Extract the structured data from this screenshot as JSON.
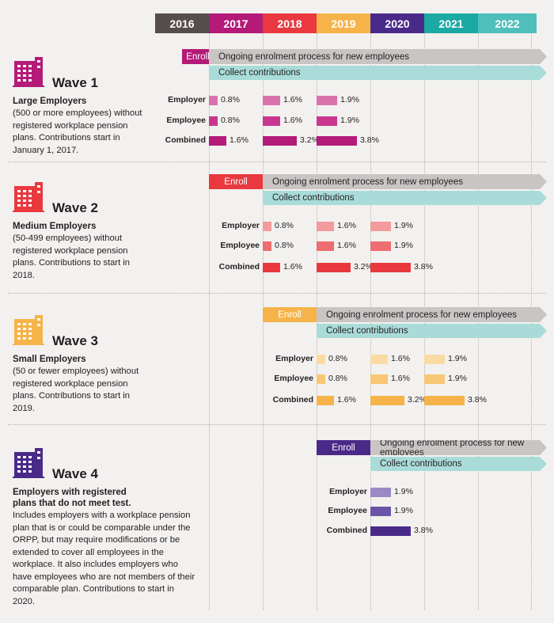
{
  "years": [
    {
      "label": "2016",
      "color": "#544d4b"
    },
    {
      "label": "2017",
      "color": "#b41a78"
    },
    {
      "label": "2018",
      "color": "#e9393f"
    },
    {
      "label": "2019",
      "color": "#f6b349"
    },
    {
      "label": "2020",
      "color": "#4a2a89"
    },
    {
      "label": "2021",
      "color": "#1aa9a3"
    },
    {
      "label": "2022",
      "color": "#4fbfbc"
    }
  ],
  "common": {
    "enroll": "Enroll",
    "ongoing": "Ongoing enrolment process for new employees",
    "collect": "Collect contributions",
    "employer": "Employer",
    "employee": "Employee",
    "combined": "Combined"
  },
  "waves": [
    {
      "title": "Wave 1",
      "color": "#b41a78",
      "subtitle": "Large Employers",
      "description": "(500 or more employees) without registered workplace pension plans. Contributions start in January 1, 2017.",
      "start_year": "2017",
      "employer": {
        "colors": [
          "#da72ad",
          "#da72ad",
          "#da72ad"
        ],
        "values": [
          "0.8%",
          "1.6%",
          "1.9%"
        ]
      },
      "employee": {
        "colors": [
          "#c9378f",
          "#c9378f",
          "#c9378f"
        ],
        "values": [
          "0.8%",
          "1.6%",
          "1.9%"
        ]
      },
      "combined": {
        "colors": [
          "#b41a78",
          "#b41a78",
          "#b41a78"
        ],
        "values": [
          "1.6%",
          "3.2%",
          "3.8%"
        ]
      }
    },
    {
      "title": "Wave 2",
      "color": "#e9393f",
      "subtitle": "Medium Employers",
      "description": "(50-499 employees) without registered workplace pension plans. Contributions to start in 2018.",
      "start_year": "2018",
      "employer": {
        "colors": [
          "#f29a9c",
          "#f29a9c",
          "#f29a9c"
        ],
        "values": [
          "0.8%",
          "1.6%",
          "1.9%"
        ]
      },
      "employee": {
        "colors": [
          "#ee6d70",
          "#ee6d70",
          "#ee6d70"
        ],
        "values": [
          "0.8%",
          "1.6%",
          "1.9%"
        ]
      },
      "combined": {
        "colors": [
          "#e9393f",
          "#e9393f",
          "#e9393f"
        ],
        "values": [
          "1.6%",
          "3.2%",
          "3.8%"
        ]
      }
    },
    {
      "title": "Wave 3",
      "color": "#f6b349",
      "subtitle": "Small Employers",
      "description": "(50 or fewer employees) without registered workplace pension plans. Contributions to start in 2019.",
      "start_year": "2019",
      "employer": {
        "colors": [
          "#fbdba4",
          "#fbdba4",
          "#fbdba4"
        ],
        "values": [
          "0.8%",
          "1.6%",
          "1.9%"
        ]
      },
      "employee": {
        "colors": [
          "#f8c775",
          "#f8c775",
          "#f8c775"
        ],
        "values": [
          "0.8%",
          "1.6%",
          "1.9%"
        ]
      },
      "combined": {
        "colors": [
          "#f6b349",
          "#f6b349",
          "#f6b349"
        ],
        "values": [
          "1.6%",
          "3.2%",
          "3.8%"
        ]
      }
    },
    {
      "title": "Wave 4",
      "color": "#4a2a89",
      "subtitle": "Employers with registered plans that do not meet test.",
      "description": "Includes employers with a workplace pension plan that is or could be comparable under the ORPP, but may require modifications or be extended to cover all employees in the workplace. It also includes employers who have employees who are not members of their comparable plan. Contributions to start in 2020.",
      "start_year": "2020",
      "employer": {
        "colors": [
          "#9b89c4"
        ],
        "values": [
          "1.9%"
        ]
      },
      "employee": {
        "colors": [
          "#6b54a8"
        ],
        "values": [
          "1.9%"
        ]
      },
      "combined": {
        "colors": [
          "#4a2a89"
        ],
        "values": [
          "3.8%"
        ]
      }
    }
  ]
}
